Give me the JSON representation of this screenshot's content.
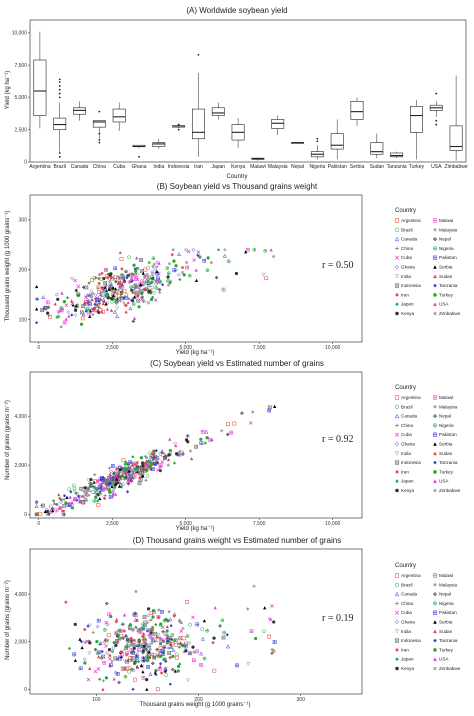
{
  "chart_data": [
    {
      "type": "box",
      "title": "(A) Worldwide soybean yield",
      "xlabel": "Country",
      "ylabel": "Yield (kg ha⁻¹)",
      "ylim": [
        0,
        11000
      ],
      "yticks": [
        0,
        2500,
        5000,
        7500,
        10000
      ],
      "ytick_labels": [
        "0",
        "2,500",
        "5,000",
        "7,500",
        "10,000"
      ],
      "grid": false,
      "categories": [
        "Argentina",
        "Brazil",
        "Canada",
        "China",
        "Cuba",
        "Ghana",
        "India",
        "Indonesia",
        "Iran",
        "Japan",
        "Kenya",
        "Malawi",
        "Malaysia",
        "Nepal",
        "Nigeria",
        "Pakistan",
        "Serbia",
        "Sudan",
        "Tanzania",
        "Turkey",
        "USA",
        "Zimbabwe"
      ],
      "boxes": [
        {
          "min": 2600,
          "q1": 3600,
          "median": 5500,
          "q3": 7900,
          "max": 10100,
          "outliers": []
        },
        {
          "min": 800,
          "q1": 2500,
          "median": 2900,
          "q3": 3400,
          "max": 4600,
          "outliers": [
            5000,
            5300,
            5600,
            5900,
            6200,
            6400,
            700,
            400
          ]
        },
        {
          "min": 3200,
          "q1": 3700,
          "median": 4000,
          "q3": 4200,
          "max": 4700,
          "outliers": []
        },
        {
          "min": 1800,
          "q1": 2700,
          "median": 3100,
          "q3": 3200,
          "max": 3200,
          "outliers": [
            3900,
            2200,
            1700,
            1500
          ]
        },
        {
          "min": 2400,
          "q1": 3100,
          "median": 3500,
          "q3": 4100,
          "max": 4600,
          "outliers": []
        },
        {
          "min": 1100,
          "q1": 1200,
          "median": 1200,
          "q3": 1300,
          "max": 1300,
          "outliers": [
            400
          ]
        },
        {
          "min": 1000,
          "q1": 1200,
          "median": 1400,
          "q3": 1500,
          "max": 1800,
          "outliers": []
        },
        {
          "min": 2600,
          "q1": 2700,
          "median": 2800,
          "q3": 2800,
          "max": 2900,
          "outliers": [
            2500,
            2900
          ]
        },
        {
          "min": 400,
          "q1": 1800,
          "median": 2300,
          "q3": 4100,
          "max": 6900,
          "outliers": [
            8300
          ]
        },
        {
          "min": 3300,
          "q1": 3600,
          "median": 3800,
          "q3": 4200,
          "max": 4600,
          "outliers": []
        },
        {
          "min": 1100,
          "q1": 1700,
          "median": 2300,
          "q3": 2900,
          "max": 3400,
          "outliers": []
        },
        {
          "min": 100,
          "q1": 200,
          "median": 250,
          "q3": 300,
          "max": 350,
          "outliers": []
        },
        {
          "min": 2100,
          "q1": 2600,
          "median": 3000,
          "q3": 3300,
          "max": 3600,
          "outliers": []
        },
        {
          "min": 1500,
          "q1": 1500,
          "median": 1500,
          "q3": 1500,
          "max": 1500,
          "outliers": []
        },
        {
          "min": 200,
          "q1": 400,
          "median": 600,
          "q3": 800,
          "max": 1300,
          "outliers": [
            1600,
            1800
          ]
        },
        {
          "min": 200,
          "q1": 1000,
          "median": 1300,
          "q3": 2200,
          "max": 3300,
          "outliers": []
        },
        {
          "min": 2800,
          "q1": 3300,
          "median": 3900,
          "q3": 4700,
          "max": 5000,
          "outliers": []
        },
        {
          "min": 300,
          "q1": 600,
          "median": 800,
          "q3": 1500,
          "max": 2200,
          "outliers": []
        },
        {
          "min": 300,
          "q1": 400,
          "median": 500,
          "q3": 700,
          "max": 800,
          "outliers": []
        },
        {
          "min": 200,
          "q1": 2300,
          "median": 3600,
          "q3": 4300,
          "max": 4800,
          "outliers": []
        },
        {
          "min": 3500,
          "q1": 4000,
          "median": 4200,
          "q3": 4400,
          "max": 4700,
          "outliers": [
            3200,
            5300,
            2900
          ]
        },
        {
          "min": 100,
          "q1": 900,
          "median": 1200,
          "q3": 2800,
          "max": 6700,
          "outliers": []
        }
      ]
    },
    {
      "type": "scatter",
      "title": "(B) Soybean yield vs Thousand grains weight",
      "xlabel": "Yield (kg ha⁻¹)",
      "ylabel": "Thousand grains weight (g 1000 grains⁻¹)",
      "xlim": [
        -300,
        11000
      ],
      "ylim": [
        55,
        350
      ],
      "xticks": [
        0,
        2500,
        5000,
        7500,
        10000
      ],
      "xtick_labels": [
        "0",
        "2,500",
        "5,000",
        "7,500",
        "10,000"
      ],
      "yticks": [
        100,
        200,
        300
      ],
      "ytick_labels": [
        "100",
        "200",
        "300"
      ],
      "annotation": "r = 0.50",
      "legend_position": "right",
      "x_mean": 2700,
      "x_sd": 1150,
      "y_base": 110,
      "y_slope": 0.018,
      "y_sd": 25,
      "y_min": 60,
      "y_max": 240
    },
    {
      "type": "scatter",
      "title": "(C) Soybean yield vs Estimated number of grains",
      "xlabel": "Yield (kg ha⁻¹)",
      "ylabel": "Number of grains (grains m⁻²)",
      "xlim": [
        -300,
        11000
      ],
      "ylim": [
        -150,
        5800
      ],
      "xticks": [
        0,
        2500,
        5000,
        7500,
        10000
      ],
      "xtick_labels": [
        "0",
        "2,500",
        "5,000",
        "7,500",
        "10,000"
      ],
      "yticks": [
        0,
        2000,
        4000
      ],
      "ytick_labels": [
        "0",
        "2,000",
        "4,000"
      ],
      "annotation": "r = 0.92",
      "legend_position": "right",
      "x_mean": 2700,
      "x_sd": 1150,
      "y_base": 0,
      "y_slope": 0.55,
      "y_sd": 260,
      "y_min": 0,
      "y_max": 5600
    },
    {
      "type": "scatter",
      "title": "(D) Thousand grains weight vs Estimated number of grains",
      "xlabel": "Thousand grains weight (g 1000 grains⁻¹)",
      "ylabel": "Number of grains (grains m⁻²)",
      "xlim": [
        35,
        360
      ],
      "ylim": [
        -200,
        5900
      ],
      "xticks": [
        100,
        200,
        300
      ],
      "xtick_labels": [
        "100",
        "200",
        "300"
      ],
      "yticks": [
        0,
        2000,
        4000
      ],
      "ytick_labels": [
        "0",
        "2,000",
        "4,000"
      ],
      "annotation": "r = 0.19",
      "legend_position": "right",
      "x_mean": 145,
      "x_sd": 28,
      "y_base": 1200,
      "y_slope": 4,
      "y_sd": 750,
      "y_min": 0,
      "y_max": 5600
    }
  ],
  "legend": {
    "title": "Country",
    "entries": [
      {
        "label": "Argentina",
        "color": "#e8403a",
        "shape": "square-open"
      },
      {
        "label": "Malawi",
        "color": "#e53ad6",
        "shape": "square-cross"
      },
      {
        "label": "Brazil",
        "color": "#22a838",
        "shape": "circle-open"
      },
      {
        "label": "Malaysia",
        "color": "#999999",
        "shape": "asterisk"
      },
      {
        "label": "Canada",
        "color": "#3a3ae0",
        "shape": "triangle-open"
      },
      {
        "label": "Nepal",
        "color": "#333333",
        "shape": "diamond-plus"
      },
      {
        "label": "China",
        "color": "#777777",
        "shape": "plus"
      },
      {
        "label": "Nigeria",
        "color": "#22a838",
        "shape": "circle-plus"
      },
      {
        "label": "Cuba",
        "color": "#e53ad6",
        "shape": "cross"
      },
      {
        "label": "Pakistan",
        "color": "#3a3ae0",
        "shape": "square-boxed"
      },
      {
        "label": "Ghana",
        "color": "#3a3ae0",
        "shape": "diamond-open"
      },
      {
        "label": "Serbia",
        "color": "#000000",
        "shape": "triangle-filled"
      },
      {
        "label": "India",
        "color": "#999999",
        "shape": "triangle-down"
      },
      {
        "label": "Sudan",
        "color": "#e8403a",
        "shape": "triangle-filled"
      },
      {
        "label": "Indonesia",
        "color": "#555555",
        "shape": "square-x"
      },
      {
        "label": "Tanzania",
        "color": "#3a3ae0",
        "shape": "diamond-filled"
      },
      {
        "label": "Iran",
        "color": "#e8403a",
        "shape": "star"
      },
      {
        "label": "Turkey",
        "color": "#22a838",
        "shape": "circle-filled"
      },
      {
        "label": "Japan",
        "color": "#22a838",
        "shape": "diamond-filled"
      },
      {
        "label": "USA",
        "color": "#e53ad6",
        "shape": "triangle-filled"
      },
      {
        "label": "Kenya",
        "color": "#333333",
        "shape": "circle-filled"
      },
      {
        "label": "Zimbabwe",
        "color": "#999999",
        "shape": "asterisk"
      }
    ]
  }
}
